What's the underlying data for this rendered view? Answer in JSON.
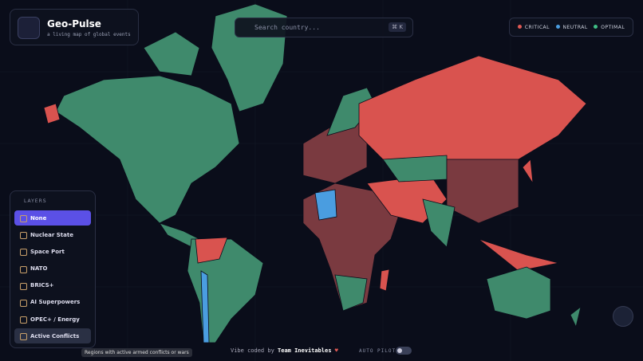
{
  "header": {
    "title": "Geo-Pulse",
    "subtitle": "a living map of global events"
  },
  "search": {
    "placeholder": "Search country...",
    "shortcut": "⌘ K"
  },
  "legend": [
    "CRITICAL",
    "NEUTRAL",
    "OPTIMAL"
  ],
  "layers": {
    "title": "LAYERS",
    "items": [
      "None",
      "Nuclear State",
      "Space Port",
      "NATO",
      "BRICS+",
      "AI Superpowers",
      "OPEC+ / Energy",
      "Active Conflicts"
    ],
    "tooltip": "Regions with active armed conflicts or wars"
  },
  "footer": {
    "prefix": "Vibe coded by",
    "team": "Team Inevitables",
    "autopilot": "AUTO PILOT"
  }
}
